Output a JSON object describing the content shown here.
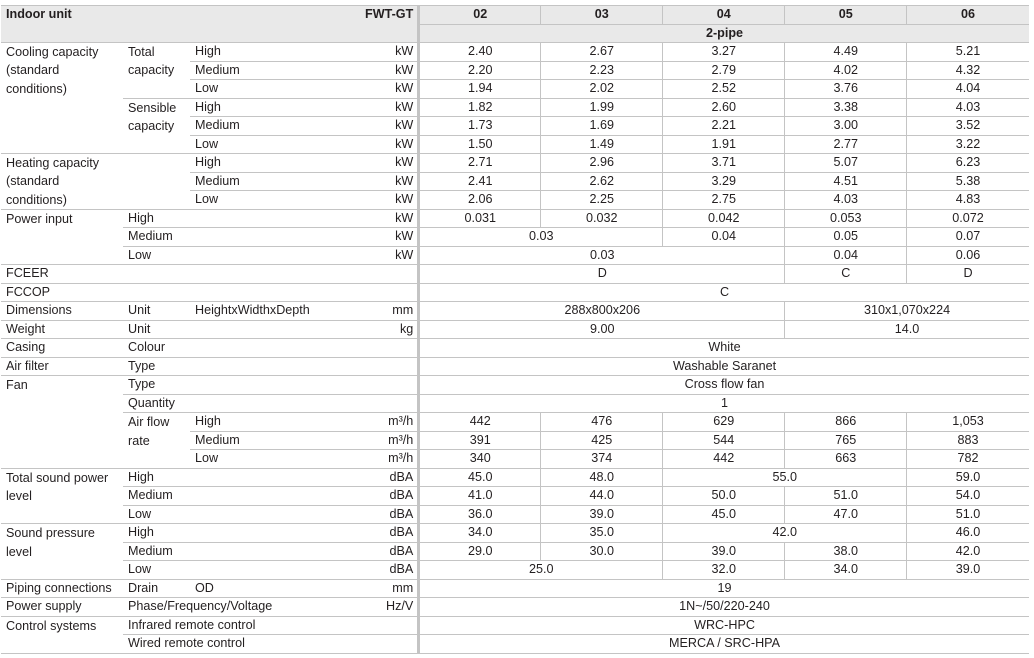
{
  "header": {
    "title": "Indoor unit",
    "series": "FWT-GT",
    "models": [
      "02",
      "03",
      "04",
      "05",
      "06"
    ],
    "type_label": "2-pipe"
  },
  "rows": [
    {
      "cells": [
        {
          "t": "Cooling capacity (standard conditions)",
          "rs": 6
        },
        {
          "t": "Total capacity",
          "rs": 3
        },
        {
          "t": "High"
        }
      ],
      "u": "kW",
      "v": [
        "2.40",
        "2.67",
        "3.27",
        "4.49",
        "5.21"
      ]
    },
    {
      "cells": [
        {
          "t": "Medium"
        }
      ],
      "u": "kW",
      "v": [
        "2.20",
        "2.23",
        "2.79",
        "4.02",
        "4.32"
      ]
    },
    {
      "cells": [
        {
          "t": "Low"
        }
      ],
      "u": "kW",
      "v": [
        "1.94",
        "2.02",
        "2.52",
        "3.76",
        "4.04"
      ]
    },
    {
      "cells": [
        {
          "t": "Sensible capacity",
          "rs": 3
        },
        {
          "t": "High"
        }
      ],
      "u": "kW",
      "v": [
        "1.82",
        "1.99",
        "2.60",
        "3.38",
        "4.03"
      ]
    },
    {
      "cells": [
        {
          "t": "Medium"
        }
      ],
      "u": "kW",
      "v": [
        "1.73",
        "1.69",
        "2.21",
        "3.00",
        "3.52"
      ]
    },
    {
      "cells": [
        {
          "t": "Low"
        }
      ],
      "u": "kW",
      "v": [
        "1.50",
        "1.49",
        "1.91",
        "2.77",
        "3.22"
      ]
    },
    {
      "cells": [
        {
          "t": "Heating capacity (standard conditions)",
          "rs": 3
        },
        {
          "t": "",
          "rs": 3
        },
        {
          "t": "High"
        }
      ],
      "u": "kW",
      "v": [
        "2.71",
        "2.96",
        "3.71",
        "5.07",
        "6.23"
      ]
    },
    {
      "cells": [
        {
          "t": "Medium"
        }
      ],
      "u": "kW",
      "v": [
        "2.41",
        "2.62",
        "3.29",
        "4.51",
        "5.38"
      ]
    },
    {
      "cells": [
        {
          "t": "Low"
        }
      ],
      "u": "kW",
      "v": [
        "2.06",
        "2.25",
        "2.75",
        "4.03",
        "4.83"
      ]
    },
    {
      "cells": [
        {
          "t": "Power input",
          "rs": 3
        },
        {
          "t": "High",
          "cs": 2
        }
      ],
      "u": "kW",
      "v": [
        "0.031",
        "0.032",
        "0.042",
        "0.053",
        "0.072"
      ]
    },
    {
      "cells": [
        {
          "t": "Medium",
          "cs": 2
        }
      ],
      "u": "kW",
      "v": [
        "0.03",
        "0.03",
        "0.04",
        "0.05",
        "0.07"
      ]
    },
    {
      "cells": [
        {
          "t": "Low",
          "cs": 2
        }
      ],
      "u": "kW",
      "v": [
        "0.03",
        "0.03",
        "0.03",
        "0.04",
        "0.06"
      ]
    },
    {
      "cells": [
        {
          "t": "FCEER",
          "cs": 3
        }
      ],
      "u": "",
      "v": [
        "D",
        "D",
        "D",
        "C",
        "D"
      ]
    },
    {
      "cells": [
        {
          "t": "FCCOP",
          "cs": 3
        }
      ],
      "u": "",
      "v": [
        "C",
        "C",
        "C",
        "C",
        "C"
      ]
    },
    {
      "cells": [
        {
          "t": "Dimensions"
        },
        {
          "t": "Unit"
        },
        {
          "t": "HeightxWidthxDepth"
        }
      ],
      "u": "mm",
      "v": [
        "288x800x206",
        "288x800x206",
        "288x800x206",
        "310x1,070x224",
        "310x1,070x224"
      ]
    },
    {
      "cells": [
        {
          "t": "Weight"
        },
        {
          "t": "Unit",
          "cs": 2
        }
      ],
      "u": "kg",
      "v": [
        "9.00",
        "9.00",
        "9.00",
        "14.0",
        "14.0"
      ]
    },
    {
      "cells": [
        {
          "t": "Casing"
        },
        {
          "t": "Colour",
          "cs": 2
        }
      ],
      "u": "",
      "v": [
        "White",
        "White",
        "White",
        "White",
        "White"
      ]
    },
    {
      "cells": [
        {
          "t": "Air filter"
        },
        {
          "t": "Type",
          "cs": 2
        }
      ],
      "u": "",
      "v": [
        "Washable Saranet",
        "Washable Saranet",
        "Washable Saranet",
        "Washable Saranet",
        "Washable Saranet"
      ]
    },
    {
      "cells": [
        {
          "t": "Fan",
          "rs": 5
        },
        {
          "t": "Type",
          "cs": 2
        }
      ],
      "u": "",
      "v": [
        "Cross flow fan",
        "Cross flow fan",
        "Cross flow fan",
        "Cross flow fan",
        "Cross flow fan"
      ]
    },
    {
      "cells": [
        {
          "t": "Quantity",
          "cs": 2
        }
      ],
      "u": "",
      "v": [
        "1",
        "1",
        "1",
        "1",
        "1"
      ]
    },
    {
      "cells": [
        {
          "t": "Air flow rate",
          "rs": 3
        },
        {
          "t": "High"
        }
      ],
      "u": "m³/h",
      "v": [
        "442",
        "476",
        "629",
        "866",
        "1,053"
      ]
    },
    {
      "cells": [
        {
          "t": "Medium"
        }
      ],
      "u": "m³/h",
      "v": [
        "391",
        "425",
        "544",
        "765",
        "883"
      ]
    },
    {
      "cells": [
        {
          "t": "Low"
        }
      ],
      "u": "m³/h",
      "v": [
        "340",
        "374",
        "442",
        "663",
        "782"
      ]
    },
    {
      "cells": [
        {
          "t": "Total sound power level",
          "rs": 3
        },
        {
          "t": "High",
          "cs": 2
        }
      ],
      "u": "dBA",
      "v": [
        "45.0",
        "48.0",
        "55.0",
        "55.0",
        "59.0"
      ]
    },
    {
      "cells": [
        {
          "t": "Medium",
          "cs": 2
        }
      ],
      "u": "dBA",
      "v": [
        "41.0",
        "44.0",
        "50.0",
        "51.0",
        "54.0"
      ]
    },
    {
      "cells": [
        {
          "t": "Low",
          "cs": 2
        }
      ],
      "u": "dBA",
      "v": [
        "36.0",
        "39.0",
        "45.0",
        "47.0",
        "51.0"
      ]
    },
    {
      "cells": [
        {
          "t": "Sound pressure level",
          "rs": 3
        },
        {
          "t": "High",
          "cs": 2
        }
      ],
      "u": "dBA",
      "v": [
        "34.0",
        "35.0",
        "42.0",
        "42.0",
        "46.0"
      ]
    },
    {
      "cells": [
        {
          "t": "Medium",
          "cs": 2
        }
      ],
      "u": "dBA",
      "v": [
        "29.0",
        "30.0",
        "39.0",
        "38.0",
        "42.0"
      ]
    },
    {
      "cells": [
        {
          "t": "Low",
          "cs": 2
        }
      ],
      "u": "dBA",
      "v": [
        "25.0",
        "25.0",
        "32.0",
        "34.0",
        "39.0"
      ]
    },
    {
      "cells": [
        {
          "t": "Piping connections"
        },
        {
          "t": "Drain"
        },
        {
          "t": "OD"
        }
      ],
      "u": "mm",
      "v": [
        "19",
        "19",
        "19",
        "19",
        "19"
      ]
    },
    {
      "cells": [
        {
          "t": "Power supply"
        },
        {
          "t": "Phase/Frequency/Voltage",
          "cs": 2
        }
      ],
      "u": "Hz/V",
      "v": [
        "1N~/50/220-240",
        "1N~/50/220-240",
        "1N~/50/220-240",
        "1N~/50/220-240",
        "1N~/50/220-240"
      ]
    },
    {
      "cells": [
        {
          "t": "Control systems",
          "rs": 2
        },
        {
          "t": "Infrared remote control",
          "cs": 2
        }
      ],
      "u": "",
      "v": [
        "WRC-HPC",
        "WRC-HPC",
        "WRC-HPC",
        "WRC-HPC",
        "WRC-HPC"
      ]
    },
    {
      "cells": [
        {
          "t": "Wired remote control",
          "cs": 2
        }
      ],
      "u": "",
      "v": [
        "MERCA / SRC-HPA",
        "MERCA / SRC-HPA",
        "MERCA / SRC-HPA",
        "MERCA / SRC-HPA",
        "MERCA / SRC-HPA"
      ]
    }
  ]
}
